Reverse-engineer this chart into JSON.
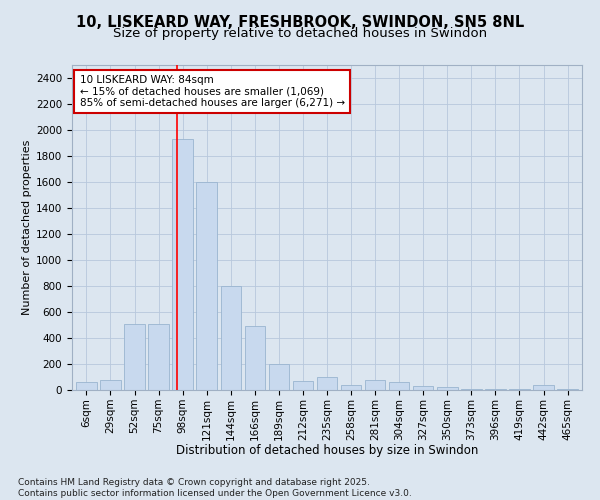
{
  "title": "10, LISKEARD WAY, FRESHBROOK, SWINDON, SN5 8NL",
  "subtitle": "Size of property relative to detached houses in Swindon",
  "xlabel": "Distribution of detached houses by size in Swindon",
  "ylabel": "Number of detached properties",
  "categories": [
    "6sqm",
    "29sqm",
    "52sqm",
    "75sqm",
    "98sqm",
    "121sqm",
    "144sqm",
    "166sqm",
    "189sqm",
    "212sqm",
    "235sqm",
    "258sqm",
    "281sqm",
    "304sqm",
    "327sqm",
    "350sqm",
    "373sqm",
    "396sqm",
    "419sqm",
    "442sqm",
    "465sqm"
  ],
  "values": [
    60,
    80,
    510,
    510,
    1930,
    1600,
    800,
    490,
    200,
    70,
    100,
    40,
    80,
    60,
    30,
    20,
    10,
    5,
    5,
    40,
    5
  ],
  "bar_color": "#c8d9ee",
  "bar_edge_color": "#9ab5d0",
  "red_line_x": 3.75,
  "annotation_text": "10 LISKEARD WAY: 84sqm\n← 15% of detached houses are smaller (1,069)\n85% of semi-detached houses are larger (6,271) →",
  "annotation_box_color": "#ffffff",
  "annotation_box_edge": "#cc0000",
  "ylim": [
    0,
    2500
  ],
  "yticks": [
    0,
    200,
    400,
    600,
    800,
    1000,
    1200,
    1400,
    1600,
    1800,
    2000,
    2200,
    2400
  ],
  "grid_color": "#b8c8dc",
  "bg_color": "#dce6f0",
  "plot_bg_color": "#dce6f0",
  "footer": "Contains HM Land Registry data © Crown copyright and database right 2025.\nContains public sector information licensed under the Open Government Licence v3.0.",
  "title_fontsize": 10.5,
  "subtitle_fontsize": 9.5,
  "xlabel_fontsize": 8.5,
  "ylabel_fontsize": 8,
  "tick_fontsize": 7.5,
  "footer_fontsize": 6.5,
  "annot_fontsize": 7.5
}
